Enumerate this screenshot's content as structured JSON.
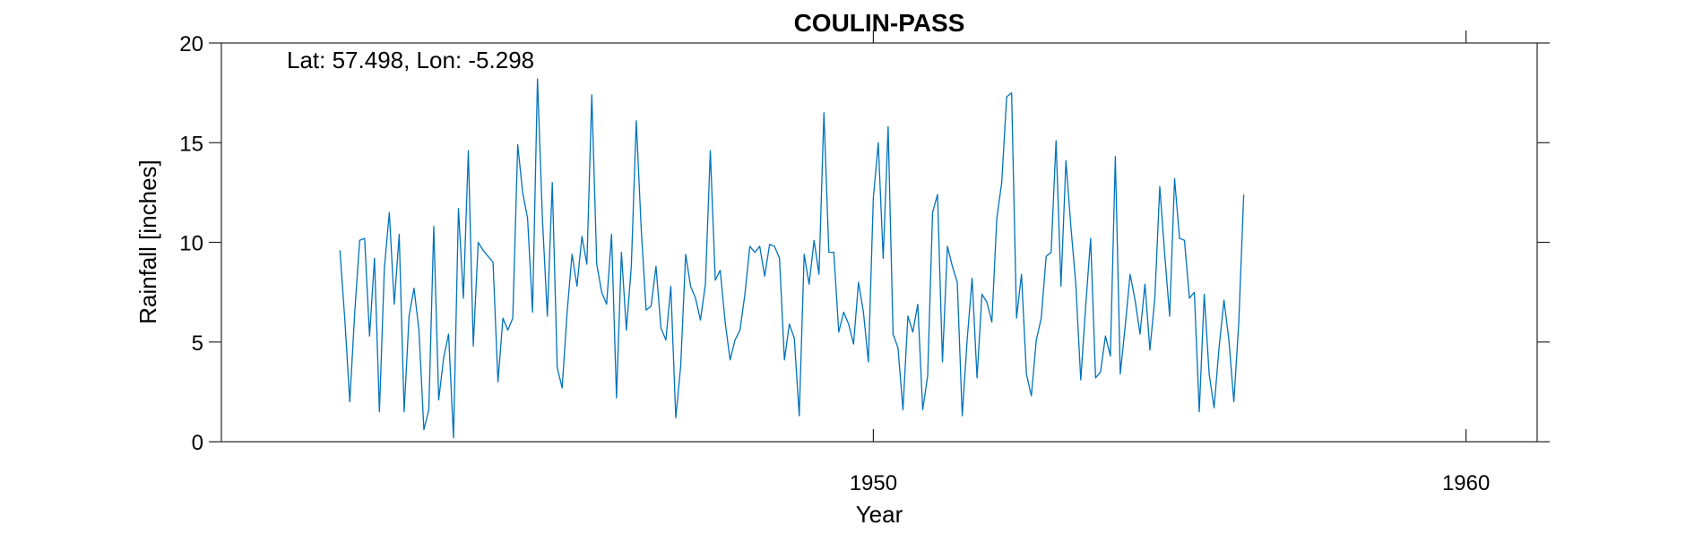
{
  "colors": {
    "series": "#0072bd",
    "axis": "#262626",
    "background": "#ffffff"
  },
  "chart_data": {
    "type": "line",
    "title": "COULIN-PASS",
    "xlabel": "Year",
    "ylabel": "Rainfall [inches]",
    "annotation": "Lat: 57.498, Lon: -5.298",
    "xlim": [
      1939.0,
      1961.2
    ],
    "ylim": [
      0,
      20
    ],
    "xticks": [
      1950,
      1960
    ],
    "xtick_labels": [
      "1950",
      "1960"
    ],
    "yticks": [
      0,
      5,
      10,
      15,
      20
    ],
    "ytick_labels": [
      "0",
      "5",
      "10",
      "15",
      "20"
    ],
    "grid": false,
    "box": true,
    "series": [
      {
        "x_start": 1941.0,
        "x_step": 0.08333,
        "values": [
          9.6,
          6.1,
          2.0,
          6.5,
          10.1,
          10.2,
          5.3,
          9.2,
          1.5,
          8.7,
          11.5,
          6.9,
          10.4,
          1.5,
          6.3,
          7.7,
          5.6,
          0.6,
          1.6,
          10.8,
          2.1,
          4.2,
          5.4,
          0.2,
          11.7,
          7.2,
          14.6,
          4.8,
          10.0,
          9.6,
          9.3,
          9.0,
          3.0,
          6.2,
          5.6,
          6.2,
          14.9,
          12.5,
          11.2,
          6.5,
          18.2,
          11.2,
          6.3,
          13.0,
          3.7,
          2.7,
          6.5,
          9.4,
          7.8,
          10.3,
          8.9,
          17.4,
          8.9,
          7.5,
          6.9,
          10.4,
          2.2,
          9.5,
          5.6,
          8.8,
          16.1,
          10.7,
          6.6,
          6.8,
          8.8,
          5.7,
          5.1,
          7.8,
          1.2,
          3.8,
          9.4,
          7.8,
          7.2,
          6.1,
          7.9,
          14.6,
          8.1,
          8.6,
          6.0,
          4.1,
          5.1,
          5.6,
          7.4,
          9.8,
          9.5,
          9.8,
          8.3,
          9.9,
          9.8,
          9.2,
          4.1,
          5.9,
          5.2,
          1.3,
          9.4,
          7.9,
          10.1,
          8.4,
          16.5,
          9.5,
          9.5,
          5.5,
          6.5,
          5.9,
          4.9,
          8.0,
          6.5,
          4.0,
          12.2,
          15.0,
          9.2,
          15.8,
          5.4,
          4.7,
          1.6,
          6.3,
          5.5,
          6.9,
          1.6,
          3.3,
          11.5,
          12.4,
          4.0,
          9.8,
          8.8,
          8.0,
          1.3,
          5.1,
          8.2,
          3.2,
          7.4,
          7.0,
          6.0,
          11.2,
          13.0,
          17.3,
          17.5,
          6.2,
          8.4,
          3.4,
          2.3,
          5.1,
          6.2,
          9.3,
          9.5,
          15.1,
          7.8,
          14.1,
          10.8,
          7.9,
          3.1,
          6.8,
          10.2,
          3.2,
          3.5,
          5.3,
          4.3,
          14.3,
          3.4,
          5.8,
          8.4,
          7.1,
          5.4,
          7.9,
          4.6,
          7.2,
          12.8,
          9.4,
          6.3,
          13.2,
          10.2,
          10.1,
          7.2,
          7.5,
          1.5,
          7.4,
          3.4,
          1.7,
          4.7,
          7.1,
          5.1,
          2.0,
          6.0,
          12.4
        ]
      }
    ]
  }
}
